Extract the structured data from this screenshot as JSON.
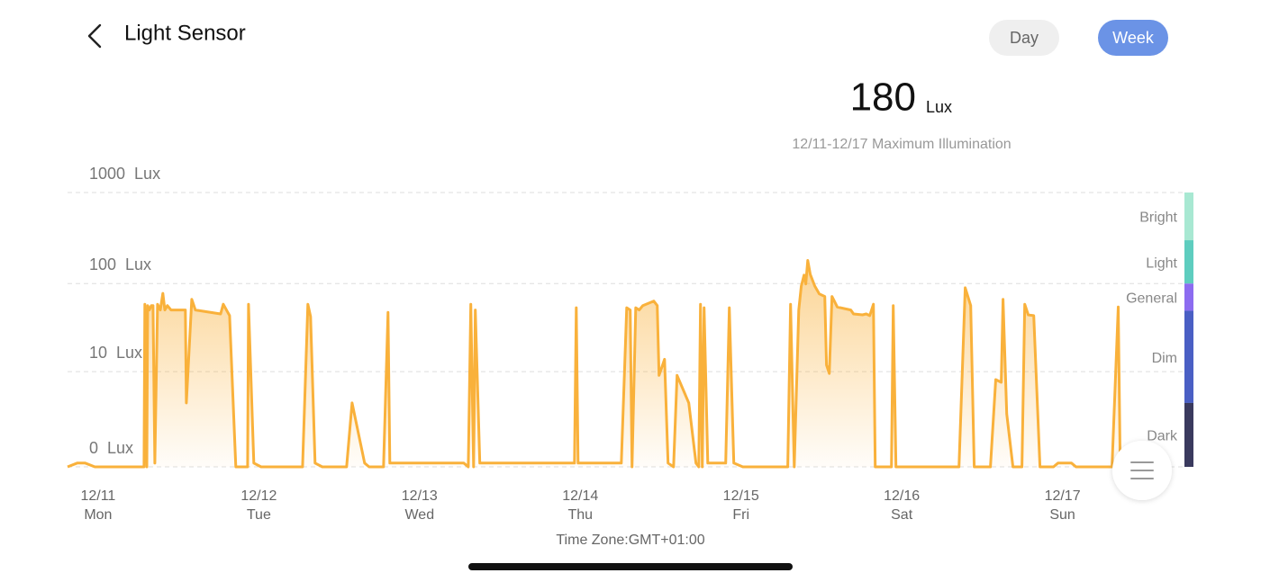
{
  "header": {
    "title": "Light Sensor",
    "buttons": [
      "Day",
      "Week"
    ],
    "active": 1
  },
  "stat": {
    "value": 180,
    "unit": "Lux",
    "caption": "12/11-12/17 Maximum Illumination"
  },
  "chart_data": {
    "type": "line",
    "color": "#f9b13b",
    "yscale": "log1p",
    "ylim": [
      0,
      1000
    ],
    "yticks": [
      {
        "value": 0,
        "label": "0  Lux"
      },
      {
        "value": 10,
        "label": "10  Lux"
      },
      {
        "value": 100,
        "label": "100  Lux"
      },
      {
        "value": 1000,
        "label": "1000  Lux"
      }
    ],
    "grid": true,
    "xlim": [
      -0.19,
      6.77
    ],
    "xticks": [
      {
        "value": 0,
        "label": "12/11"
      },
      {
        "value": 1,
        "label": "12/12"
      },
      {
        "value": 2,
        "label": "12/13"
      },
      {
        "value": 3,
        "label": "12/14"
      },
      {
        "value": 4,
        "label": "12/15"
      },
      {
        "value": 5,
        "label": "12/16"
      },
      {
        "value": 6,
        "label": "12/17"
      }
    ],
    "xtick_sublabels": [
      "Mon",
      "Tue",
      "Wed",
      "Thu",
      "Fri",
      "Sat",
      "Sun"
    ],
    "x_label": "Time Zone:GMT+01:00",
    "bands": [
      {
        "label": "Bright",
        "color": "#a8e8d2",
        "from": 300,
        "to": 1000
      },
      {
        "label": "Light",
        "color": "#5ecdbf",
        "from": 100,
        "to": 300
      },
      {
        "label": "General",
        "color": "#8c6cf0",
        "from": 50,
        "to": 100
      },
      {
        "label": "Dim",
        "color": "#4a5fc4",
        "from": 4,
        "to": 50
      },
      {
        "label": "Dark",
        "color": "#3a3a5e",
        "from": 0,
        "to": 4
      }
    ],
    "x": [
      -0.19,
      -0.13,
      -0.08,
      -0.02,
      0.286,
      0.291,
      0.303,
      0.308,
      0.319,
      0.331,
      0.342,
      0.353,
      0.37,
      0.387,
      0.403,
      0.415,
      0.431,
      0.454,
      0.543,
      0.549,
      0.583,
      0.605,
      0.762,
      0.779,
      0.818,
      0.857,
      0.93,
      0.936,
      0.969,
      1.014,
      1.272,
      1.305,
      1.322,
      1.35,
      1.395,
      1.546,
      1.58,
      1.658,
      1.686,
      1.776,
      1.804,
      1.815,
      2.275,
      2.303,
      2.319,
      2.336,
      2.347,
      2.375,
      2.964,
      2.975,
      2.986,
      3.255,
      3.289,
      3.311,
      3.322,
      3.345,
      3.367,
      3.389,
      3.457,
      3.479,
      3.49,
      3.524,
      3.546,
      3.58,
      3.602,
      3.675,
      3.72,
      3.737,
      3.748,
      3.759,
      3.77,
      3.793,
      3.905,
      3.927,
      3.955,
      4.011,
      4.291,
      4.308,
      4.331,
      4.359,
      4.375,
      4.392,
      4.403,
      4.415,
      4.431,
      4.459,
      4.487,
      4.521,
      4.532,
      4.549,
      4.566,
      4.599,
      4.683,
      4.7,
      4.756,
      4.779,
      4.801,
      4.824,
      4.835,
      4.936,
      4.947,
      4.964,
      5.356,
      5.395,
      5.429,
      5.451,
      5.552,
      5.585,
      5.619,
      5.63,
      5.653,
      5.692,
      5.748,
      5.765,
      5.787,
      5.821,
      5.86,
      5.944,
      5.972,
      6.056,
      6.084,
      6.308,
      6.347,
      6.359
    ],
    "values": [
      0,
      0.1,
      0.1,
      0,
      0,
      59,
      0,
      57,
      51,
      57,
      57,
      0.1,
      59,
      51,
      78,
      51,
      57,
      51,
      51,
      4,
      67,
      51,
      46,
      59,
      44,
      0,
      0,
      59,
      0.1,
      0,
      0,
      59,
      43,
      0.1,
      0,
      0,
      4,
      0.1,
      0,
      0,
      48,
      0.1,
      0.1,
      0,
      59,
      0,
      51,
      0.1,
      0.1,
      54,
      0.1,
      0.1,
      54,
      51,
      0,
      54,
      51,
      57,
      64,
      57,
      9,
      14,
      0.1,
      0,
      9,
      4,
      0.1,
      0,
      59,
      0,
      54,
      0.1,
      0.1,
      54,
      0.1,
      0,
      0,
      59,
      0,
      51,
      94,
      124,
      99,
      180,
      126,
      94,
      77,
      72,
      12,
      9.5,
      72,
      55,
      51,
      46,
      45,
      46,
      44,
      59,
      0,
      0,
      57,
      0,
      0,
      90,
      57,
      0,
      0,
      8,
      7.4,
      67,
      2.8,
      0,
      0,
      59,
      45,
      44,
      0,
      0,
      0.1,
      0.1,
      0,
      0,
      55,
      0
    ]
  }
}
